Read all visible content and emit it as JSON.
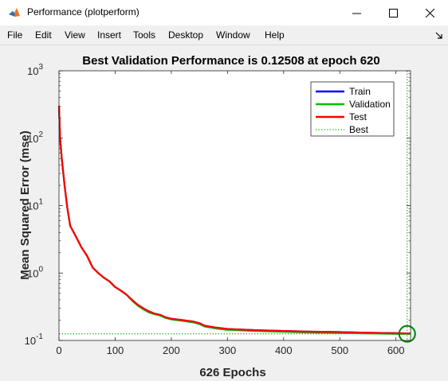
{
  "window": {
    "title": "Performance (plotperform)",
    "controls": {
      "minimize": "minimize",
      "maximize": "maximize",
      "close": "close"
    }
  },
  "menu": {
    "items": [
      "File",
      "Edit",
      "View",
      "Insert",
      "Tools",
      "Desktop",
      "Window",
      "Help"
    ]
  },
  "icons": {
    "app": "matlab-icon",
    "toolbar_toggle": "arrow-icon"
  },
  "chart_data": {
    "type": "line",
    "title": "Best Validation Performance is 0.12508 at epoch 620",
    "xlabel": "626 Epochs",
    "ylabel": "Mean Squared Error  (mse)",
    "xlim": [
      0,
      626
    ],
    "ylim": [
      0.1,
      1000
    ],
    "yscale": "log",
    "xticks": [
      "0",
      "100",
      "200",
      "300",
      "400",
      "500",
      "600"
    ],
    "yticks": [
      {
        "base": "10",
        "exp": "-1"
      },
      {
        "base": "10",
        "exp": "0"
      },
      {
        "base": "10",
        "exp": "1"
      },
      {
        "base": "10",
        "exp": "2"
      },
      {
        "base": "10",
        "exp": "3"
      }
    ],
    "legend_position": "top-right",
    "colors": {
      "train": "#0000ff",
      "validation": "#00c000",
      "test": "#ff0000",
      "best": "#00a000",
      "marker": "#008000"
    },
    "series": [
      {
        "name": "Train",
        "x": [
          0,
          2,
          5,
          10,
          15,
          20,
          30,
          40,
          50,
          60,
          70,
          80,
          90,
          100,
          110,
          120,
          130,
          140,
          150,
          160,
          170,
          180,
          190,
          200,
          220,
          240,
          250,
          260,
          280,
          300,
          350,
          400,
          450,
          500,
          550,
          600,
          626
        ],
        "y": [
          300,
          100,
          50,
          20,
          9,
          5,
          3.5,
          2.4,
          1.8,
          1.2,
          1.0,
          0.85,
          0.75,
          0.62,
          0.55,
          0.48,
          0.4,
          0.34,
          0.3,
          0.27,
          0.25,
          0.24,
          0.22,
          0.21,
          0.2,
          0.19,
          0.18,
          0.165,
          0.155,
          0.148,
          0.142,
          0.138,
          0.135,
          0.133,
          0.13,
          0.128,
          0.127
        ]
      },
      {
        "name": "Validation",
        "x": [
          0,
          2,
          5,
          10,
          15,
          20,
          30,
          40,
          50,
          60,
          70,
          80,
          90,
          100,
          110,
          120,
          130,
          140,
          150,
          160,
          170,
          180,
          190,
          200,
          220,
          240,
          250,
          260,
          280,
          300,
          350,
          400,
          450,
          500,
          550,
          600,
          626
        ],
        "y": [
          300,
          100,
          50,
          20,
          9,
          5,
          3.5,
          2.4,
          1.8,
          1.2,
          1.0,
          0.85,
          0.75,
          0.62,
          0.55,
          0.48,
          0.39,
          0.33,
          0.29,
          0.26,
          0.245,
          0.235,
          0.215,
          0.205,
          0.195,
          0.185,
          0.175,
          0.16,
          0.15,
          0.144,
          0.138,
          0.134,
          0.131,
          0.129,
          0.127,
          0.125,
          0.1251
        ]
      },
      {
        "name": "Test",
        "x": [
          0,
          2,
          5,
          10,
          15,
          20,
          30,
          40,
          50,
          60,
          70,
          80,
          90,
          100,
          110,
          120,
          130,
          140,
          150,
          160,
          170,
          180,
          190,
          200,
          220,
          240,
          250,
          260,
          280,
          300,
          350,
          400,
          450,
          500,
          550,
          600,
          626
        ],
        "y": [
          300,
          100,
          50,
          20,
          9,
          5,
          3.5,
          2.4,
          1.8,
          1.2,
          1.0,
          0.85,
          0.75,
          0.62,
          0.55,
          0.48,
          0.4,
          0.34,
          0.3,
          0.27,
          0.25,
          0.24,
          0.22,
          0.21,
          0.2,
          0.19,
          0.18,
          0.165,
          0.155,
          0.148,
          0.142,
          0.138,
          0.135,
          0.133,
          0.13,
          0.128,
          0.127
        ]
      },
      {
        "name": "Best",
        "x": [
          620,
          620
        ],
        "y": [
          0.12508,
          0.12508
        ]
      }
    ],
    "best": {
      "epoch": 620,
      "value": 0.12508
    }
  }
}
